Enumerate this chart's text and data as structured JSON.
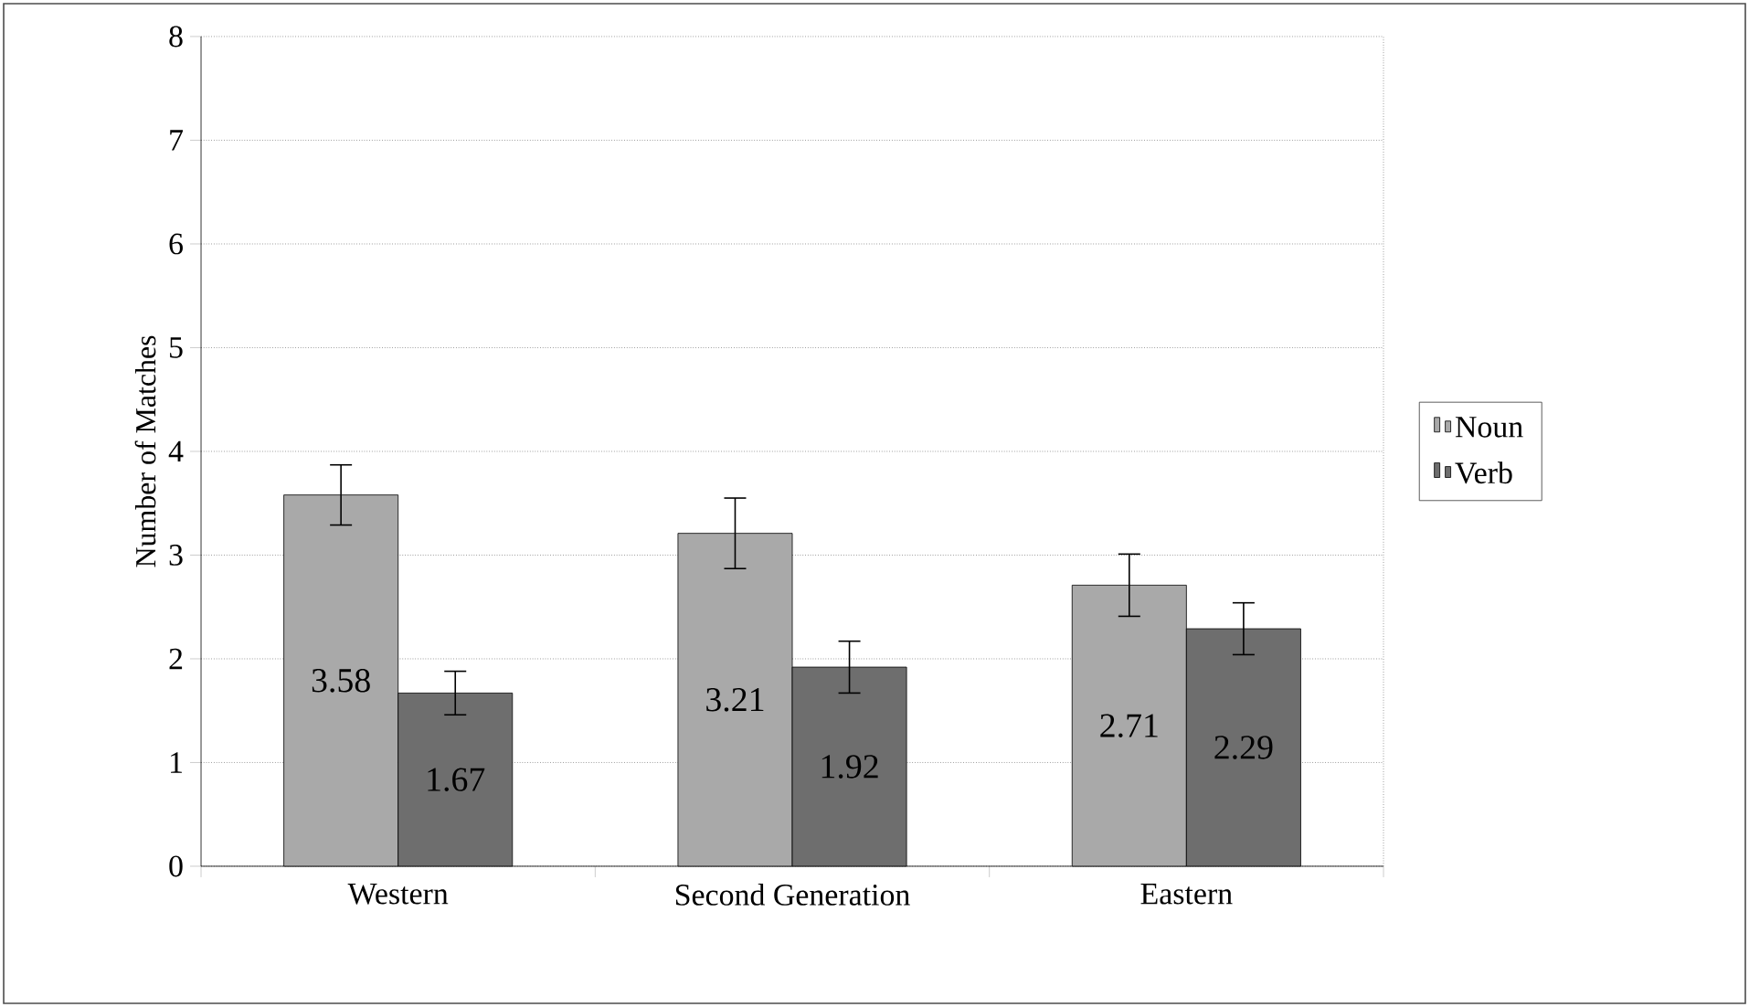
{
  "chart_data": {
    "type": "bar",
    "ylabel": "Number of Matches",
    "categories": [
      "Western",
      "Second Generation",
      "Eastern"
    ],
    "series": [
      {
        "name": "Noun",
        "color": "#a9a9a9",
        "values": [
          3.58,
          3.21,
          2.71
        ],
        "errors": [
          0.29,
          0.34,
          0.3
        ]
      },
      {
        "name": "Verb",
        "color": "#6e6e6e",
        "values": [
          1.67,
          1.92,
          2.29
        ],
        "errors": [
          0.21,
          0.25,
          0.25
        ]
      }
    ],
    "ylim": [
      0,
      8
    ],
    "yticks": [
      0,
      1,
      2,
      3,
      4,
      5,
      6,
      7,
      8
    ],
    "grid": "y",
    "legend": "right",
    "data_labels": true
  }
}
